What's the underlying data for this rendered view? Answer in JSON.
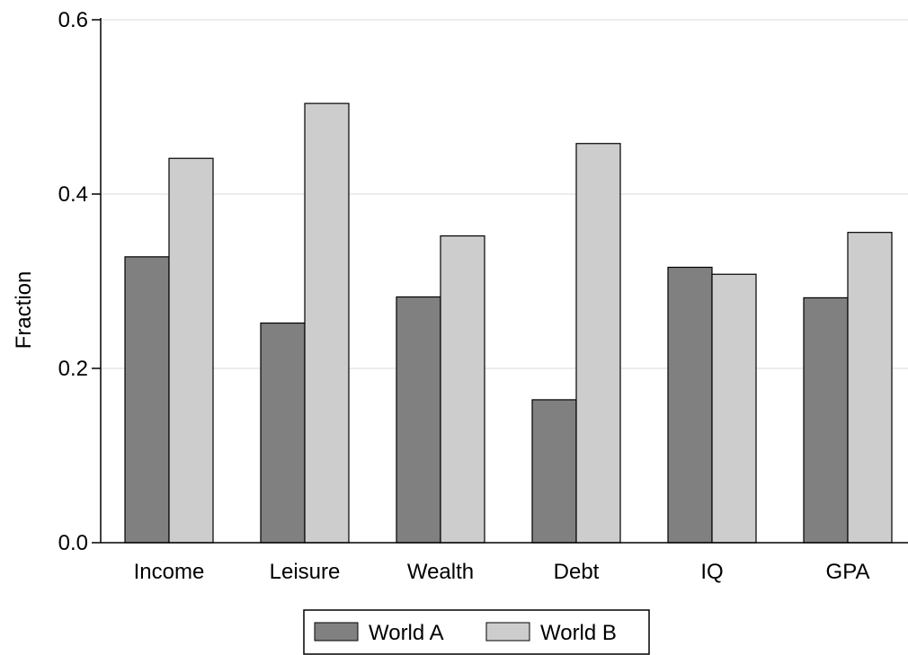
{
  "chart_data": {
    "type": "bar",
    "title": "",
    "xlabel": "",
    "ylabel": "Fraction",
    "ylim": [
      0,
      0.6
    ],
    "yticks": [
      "0.0",
      "0.2",
      "0.4",
      "0.6"
    ],
    "ytick_values": [
      0,
      0.2,
      0.4,
      0.6
    ],
    "grid": true,
    "legend_position": "bottom",
    "categories": [
      "Income",
      "Leisure",
      "Wealth",
      "Debt",
      "IQ",
      "GPA"
    ],
    "series": [
      {
        "name": "World A",
        "color": "#808080",
        "values": [
          0.328,
          0.252,
          0.282,
          0.164,
          0.316,
          0.281
        ]
      },
      {
        "name": "World B",
        "color": "#cdcdcd",
        "values": [
          0.441,
          0.504,
          0.352,
          0.458,
          0.308,
          0.356
        ]
      }
    ]
  }
}
